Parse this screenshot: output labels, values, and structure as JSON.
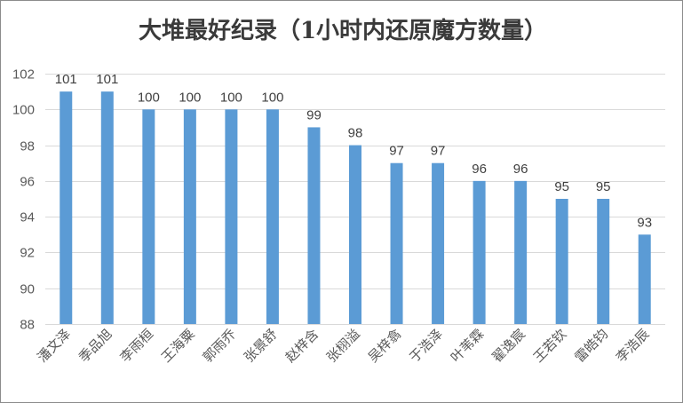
{
  "chart_data": {
    "type": "bar",
    "title": "大堆最好纪录（1小时内还原魔方数量）",
    "xlabel": "",
    "ylabel": "",
    "ylim": [
      88,
      102
    ],
    "yticks": [
      88,
      90,
      92,
      94,
      96,
      98,
      100,
      102
    ],
    "grid": true,
    "legend": "none",
    "bar_color": "#5b9bd5",
    "categories": [
      "潘文泽",
      "季品旭",
      "李雨桓",
      "王海粟",
      "郭雨乔",
      "张景舒",
      "赵梓含",
      "张栩溢",
      "吴梓翕",
      "于浩泽",
      "叶苇霖",
      "翟逸宸",
      "王若钦",
      "雷皓钧",
      "李浩辰"
    ],
    "values": [
      101,
      101,
      100,
      100,
      100,
      100,
      99,
      98,
      97,
      97,
      96,
      96,
      95,
      95,
      93
    ]
  }
}
